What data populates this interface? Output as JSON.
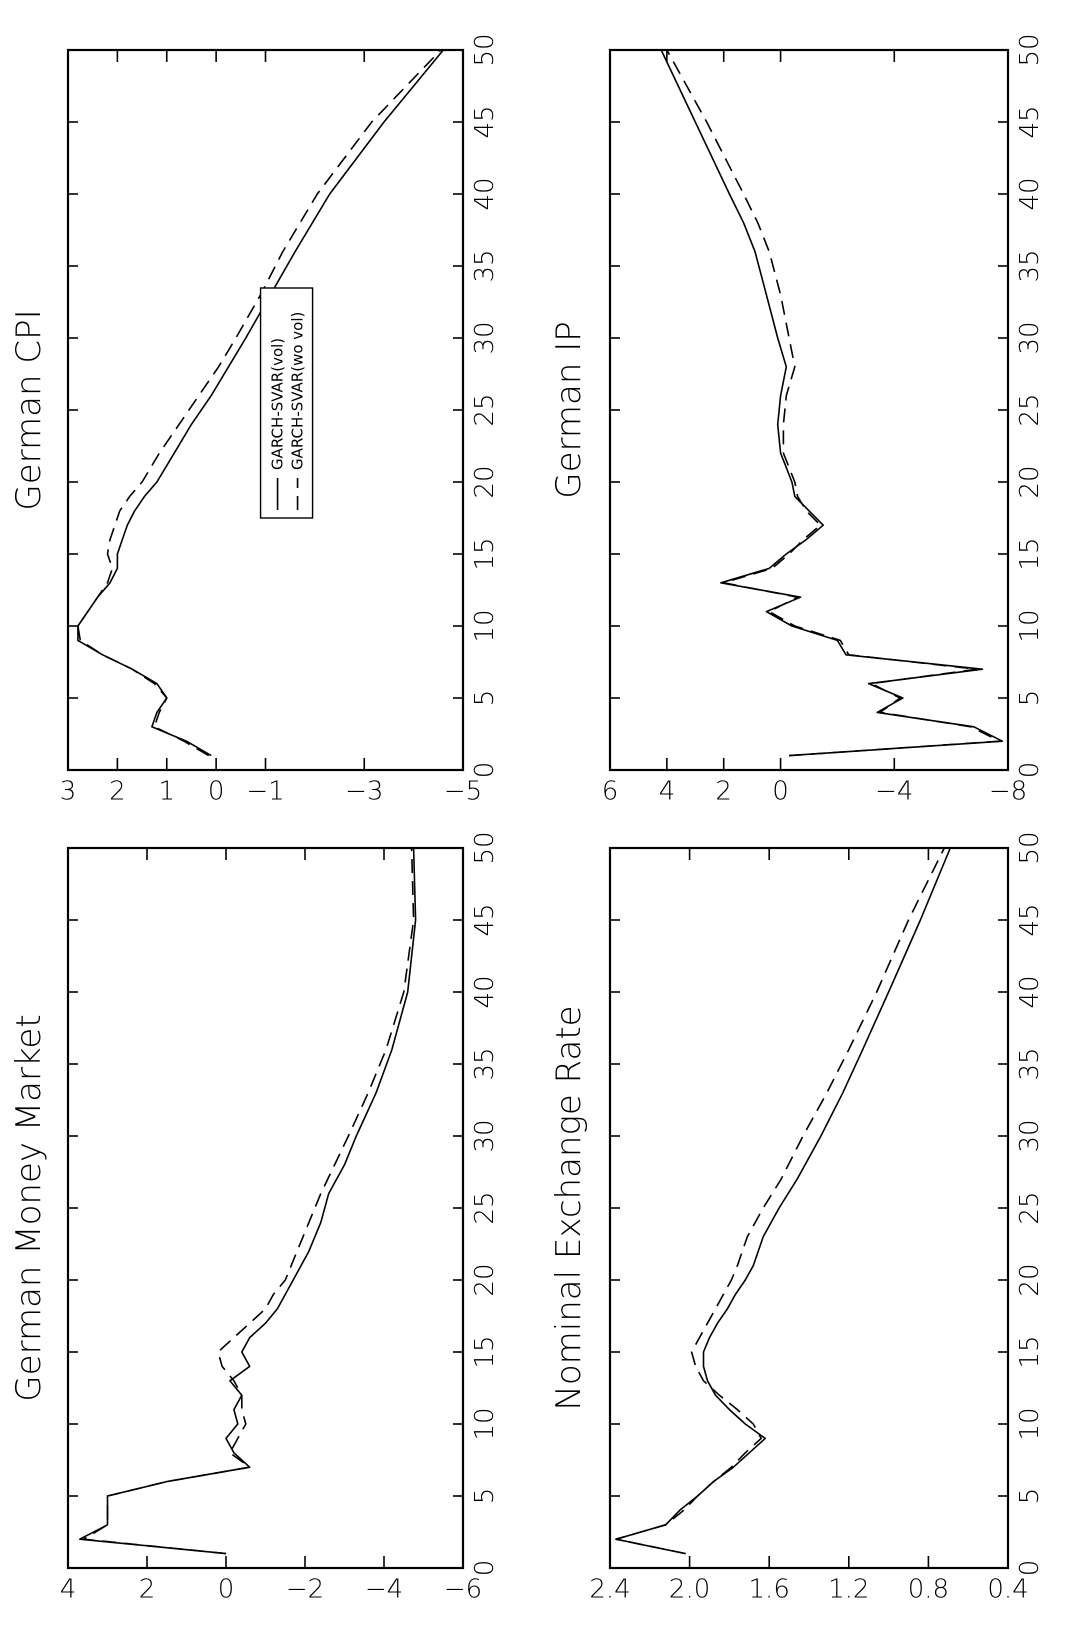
{
  "chart_data": [
    {
      "type": "line",
      "title": "German CPI",
      "xlabel": "",
      "ylabel": "",
      "xlim": [
        0,
        50
      ],
      "ylim": [
        -5,
        3
      ],
      "x_ticks": [
        "0",
        "5",
        "10",
        "15",
        "20",
        "25",
        "30",
        "35",
        "40",
        "45",
        "50"
      ],
      "y_ticks": [
        "3",
        "2",
        "1",
        "0",
        "-1",
        "-3",
        "-5"
      ],
      "legend": {
        "placement": "center",
        "entries": [
          "GARCH-SVAR(vol)",
          "GARCH-SVAR(wo vol)"
        ]
      },
      "grid": false,
      "series": [
        {
          "name": "GARCH-SVAR(vol)",
          "style": "solid",
          "x": [
            1,
            2,
            3,
            4,
            5,
            6,
            7,
            8,
            9,
            10,
            11,
            12,
            13,
            14,
            15,
            16,
            17,
            18,
            19,
            20,
            22,
            24,
            26,
            28,
            30,
            33,
            36,
            40,
            45,
            50
          ],
          "y": [
            0.1,
            0.6,
            1.3,
            1.2,
            1.0,
            1.2,
            1.7,
            2.3,
            2.8,
            2.8,
            2.6,
            2.4,
            2.15,
            2.0,
            2.0,
            1.9,
            1.8,
            1.65,
            1.45,
            1.2,
            0.85,
            0.5,
            0.1,
            -0.25,
            -0.6,
            -1.1,
            -1.6,
            -2.3,
            -3.4,
            -4.6
          ]
        },
        {
          "name": "GARCH-SVAR(wo vol)",
          "style": "dashed",
          "x": [
            1,
            2,
            3,
            4,
            5,
            6,
            7,
            8,
            9,
            10,
            11,
            12,
            13,
            14,
            15,
            16,
            17,
            18,
            19,
            20,
            22,
            24,
            26,
            28,
            30,
            33,
            36,
            40,
            45,
            50
          ],
          "y": [
            0.15,
            0.65,
            1.25,
            1.15,
            1.0,
            1.25,
            1.7,
            2.3,
            2.75,
            2.8,
            2.6,
            2.4,
            2.2,
            2.1,
            2.2,
            2.15,
            2.05,
            1.95,
            1.75,
            1.5,
            1.15,
            0.75,
            0.35,
            -0.05,
            -0.4,
            -0.9,
            -1.35,
            -2.05,
            -3.15,
            -4.55
          ]
        }
      ]
    },
    {
      "type": "line",
      "title": "German IP",
      "xlabel": "",
      "ylabel": "",
      "xlim": [
        0,
        50
      ],
      "ylim": [
        -8,
        6
      ],
      "x_ticks": [
        "0",
        "5",
        "10",
        "15",
        "20",
        "25",
        "30",
        "35",
        "40",
        "45",
        "50"
      ],
      "y_ticks": [
        "6",
        "4",
        "2",
        "0",
        "-4",
        "-8"
      ],
      "grid": false,
      "series": [
        {
          "name": "GARCH-SVAR(vol)",
          "style": "solid",
          "x": [
            1,
            2,
            3,
            4,
            5,
            6,
            7,
            8,
            9,
            10,
            11,
            12,
            13,
            14,
            15,
            16,
            17,
            18,
            19,
            20,
            21,
            22,
            24,
            26,
            28,
            30,
            33,
            36,
            38,
            40,
            45,
            50
          ],
          "y": [
            -0.3,
            -7.8,
            -6.8,
            -3.4,
            -4.3,
            -3.1,
            -7.1,
            -2.3,
            -2.0,
            -0.4,
            0.5,
            -0.7,
            2.1,
            0.4,
            -0.2,
            -0.9,
            -1.5,
            -1.0,
            -0.5,
            -0.4,
            -0.2,
            0.0,
            0.1,
            0.0,
            -0.2,
            0.1,
            0.5,
            0.9,
            1.3,
            1.8,
            3.0,
            4.2
          ]
        },
        {
          "name": "GARCH-SVAR(wo vol)",
          "style": "dashed",
          "x": [
            1,
            2,
            3,
            4,
            5,
            6,
            7,
            8,
            9,
            10,
            11,
            12,
            13,
            14,
            15,
            16,
            17,
            18,
            19,
            20,
            21,
            22,
            24,
            26,
            28,
            30,
            33,
            36,
            38,
            40,
            45,
            50
          ],
          "y": [
            -0.3,
            -7.7,
            -6.7,
            -3.5,
            -4.2,
            -3.2,
            -6.9,
            -2.4,
            -2.1,
            -0.5,
            0.4,
            -0.6,
            2.0,
            0.3,
            -0.3,
            -0.8,
            -1.4,
            -0.9,
            -0.6,
            -0.5,
            -0.3,
            -0.1,
            -0.1,
            -0.2,
            -0.5,
            -0.3,
            0.0,
            0.4,
            0.8,
            1.3,
            2.6,
            4.0
          ]
        }
      ]
    },
    {
      "type": "line",
      "title": "German Money Market",
      "xlabel": "",
      "ylabel": "",
      "xlim": [
        0,
        50
      ],
      "ylim": [
        -6,
        4
      ],
      "x_ticks": [
        "0",
        "5",
        "10",
        "15",
        "20",
        "25",
        "30",
        "35",
        "40",
        "45",
        "50"
      ],
      "y_ticks": [
        "4",
        "2",
        "0",
        "-2",
        "-4",
        "-6"
      ],
      "grid": false,
      "series": [
        {
          "name": "GARCH-SVAR(vol)",
          "style": "solid",
          "x": [
            1,
            2,
            3,
            4,
            5,
            6,
            7,
            8,
            9,
            10,
            11,
            12,
            13,
            14,
            15,
            16,
            17,
            18,
            19,
            20,
            22,
            24,
            26,
            28,
            30,
            33,
            36,
            40,
            45,
            50
          ],
          "y": [
            0.0,
            3.7,
            3.0,
            3.0,
            3.0,
            1.5,
            -0.6,
            -0.2,
            0.0,
            -0.3,
            -0.2,
            -0.4,
            -0.1,
            -0.6,
            -0.4,
            -0.6,
            -1.0,
            -1.3,
            -1.5,
            -1.7,
            -2.1,
            -2.4,
            -2.6,
            -3.0,
            -3.3,
            -3.8,
            -4.2,
            -4.6,
            -4.8,
            -4.75
          ]
        },
        {
          "name": "GARCH-SVAR(wo vol)",
          "style": "dashed",
          "x": [
            1,
            2,
            3,
            4,
            5,
            6,
            7,
            8,
            9,
            10,
            11,
            12,
            13,
            14,
            15,
            16,
            17,
            18,
            19,
            20,
            22,
            24,
            26,
            28,
            30,
            33,
            36,
            40,
            45,
            50
          ],
          "y": [
            0.0,
            3.6,
            3.0,
            3.0,
            3.0,
            1.5,
            -0.6,
            -0.1,
            -0.3,
            -0.5,
            -0.4,
            -0.4,
            -0.2,
            0.1,
            0.2,
            -0.2,
            -0.6,
            -1.0,
            -1.2,
            -1.5,
            -1.8,
            -2.1,
            -2.4,
            -2.75,
            -3.1,
            -3.6,
            -4.05,
            -4.5,
            -4.75,
            -4.7
          ]
        }
      ]
    },
    {
      "type": "line",
      "title": "Nominal Exchange Rate",
      "xlabel": "",
      "ylabel": "",
      "xlim": [
        0,
        50
      ],
      "ylim": [
        0.4,
        2.4
      ],
      "x_ticks": [
        "0",
        "5",
        "10",
        "15",
        "20",
        "25",
        "30",
        "35",
        "40",
        "45",
        "50"
      ],
      "y_ticks": [
        "2.4",
        "2.0",
        "1.6",
        "1.2",
        "0.8",
        "0.4"
      ],
      "grid": false,
      "series": [
        {
          "name": "GARCH-SVAR(vol)",
          "style": "solid",
          "x": [
            1,
            2,
            3,
            4,
            5,
            6,
            7,
            8,
            9,
            10,
            11,
            12,
            13,
            14,
            15,
            16,
            17,
            18,
            19,
            20,
            21,
            23,
            25,
            27,
            30,
            33,
            36,
            40,
            45,
            50
          ],
          "y": [
            2.02,
            2.37,
            2.12,
            2.05,
            1.96,
            1.88,
            1.78,
            1.7,
            1.62,
            1.72,
            1.8,
            1.87,
            1.91,
            1.93,
            1.93,
            1.9,
            1.86,
            1.81,
            1.77,
            1.72,
            1.68,
            1.63,
            1.55,
            1.46,
            1.34,
            1.23,
            1.13,
            1.0,
            0.84,
            0.69
          ]
        },
        {
          "name": "GARCH-SVAR(wo vol)",
          "style": "dashed",
          "x": [
            1,
            2,
            3,
            4,
            5,
            6,
            7,
            8,
            9,
            10,
            11,
            12,
            13,
            14,
            15,
            16,
            17,
            18,
            19,
            20,
            21,
            23,
            25,
            27,
            30,
            33,
            36,
            40,
            45,
            50
          ],
          "y": [
            2.02,
            2.37,
            2.12,
            2.03,
            1.96,
            1.88,
            1.79,
            1.72,
            1.64,
            1.68,
            1.76,
            1.85,
            1.93,
            1.97,
            1.99,
            1.95,
            1.91,
            1.87,
            1.83,
            1.79,
            1.76,
            1.71,
            1.63,
            1.54,
            1.43,
            1.31,
            1.2,
            1.06,
            0.9,
            0.72
          ]
        }
      ]
    }
  ]
}
